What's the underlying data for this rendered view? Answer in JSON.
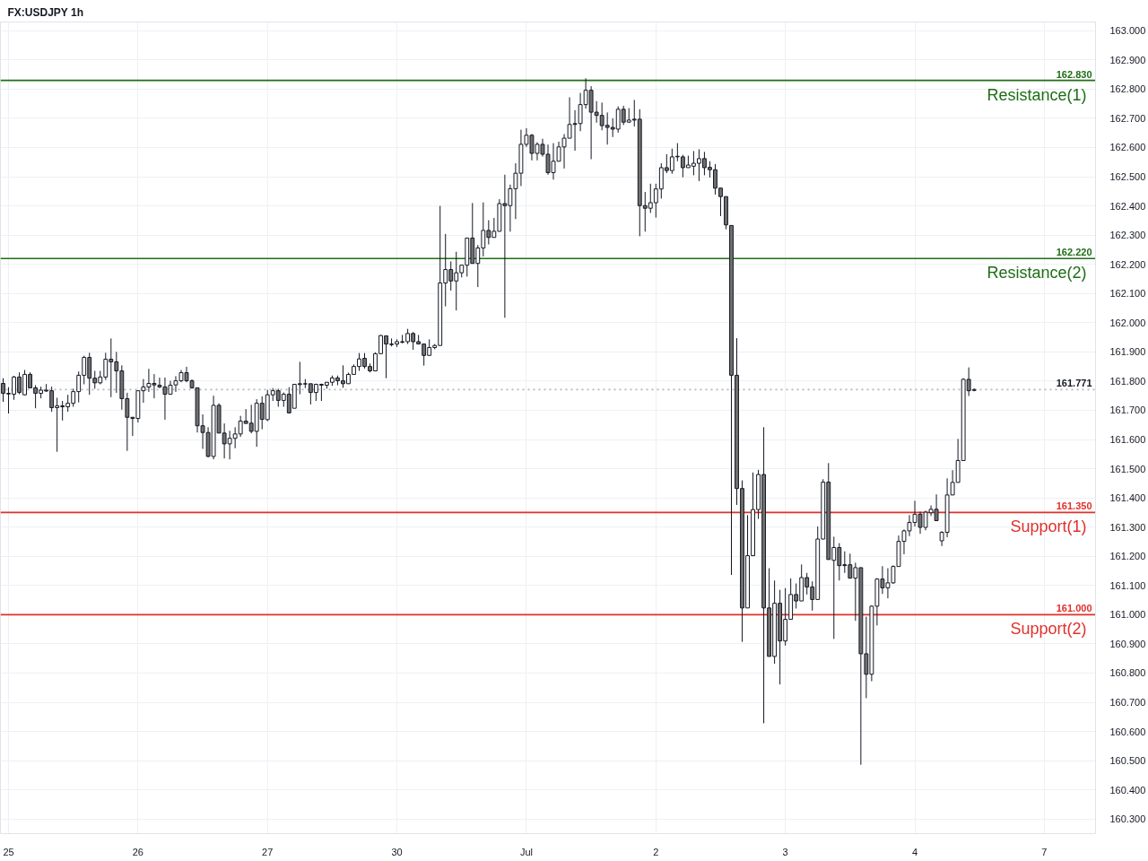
{
  "chart_data": {
    "type": "candlestick",
    "title": "FX:USDJPY 1h",
    "categories": [
      null,
      "25",
      null,
      null,
      null,
      null,
      null,
      null,
      null,
      null,
      null,
      null,
      null,
      null,
      null,
      null,
      null,
      null,
      null,
      null,
      null,
      null,
      null,
      null,
      null,
      "26",
      null,
      null,
      null,
      null,
      null,
      null,
      null,
      null,
      null,
      null,
      null,
      null,
      null,
      null,
      null,
      null,
      null,
      null,
      null,
      null,
      null,
      null,
      null,
      "27",
      null,
      null,
      null,
      null,
      null,
      null,
      null,
      null,
      null,
      null,
      null,
      null,
      null,
      null,
      null,
      null,
      null,
      null,
      null,
      null,
      null,
      null,
      null,
      "30",
      null,
      null,
      null,
      null,
      null,
      null,
      null,
      null,
      null,
      null,
      null,
      null,
      null,
      null,
      null,
      null,
      null,
      null,
      null,
      null,
      null,
      null,
      null,
      "Jul",
      null,
      null,
      null,
      null,
      null,
      null,
      null,
      null,
      null,
      null,
      null,
      null,
      null,
      null,
      null,
      null,
      null,
      null,
      null,
      null,
      null,
      null,
      null,
      "2",
      null,
      null,
      null,
      null,
      null,
      null,
      null,
      null,
      null,
      null,
      null,
      null,
      null,
      null,
      null,
      null,
      null,
      null,
      null,
      null,
      null,
      null,
      null,
      "3",
      null,
      null,
      null,
      null,
      null,
      null,
      null,
      null,
      null,
      null,
      null,
      null,
      null,
      null,
      null,
      null,
      null,
      null,
      null,
      null,
      null,
      null,
      null,
      "4",
      null,
      null,
      null,
      null,
      null,
      null,
      null,
      null,
      null,
      null,
      null,
      null,
      null,
      null,
      null,
      null,
      null,
      null,
      null,
      null,
      null,
      null,
      null,
      "7",
      null,
      null,
      null,
      null,
      null,
      null,
      null,
      null,
      null
    ],
    "ohlc": [
      [
        161.792,
        161.81,
        161.729,
        161.758
      ],
      [
        161.758,
        161.779,
        161.689,
        161.756
      ],
      [
        161.755,
        161.818,
        161.736,
        161.814
      ],
      [
        161.814,
        161.83,
        161.755,
        161.761
      ],
      [
        161.753,
        161.838,
        161.751,
        161.823
      ],
      [
        161.823,
        161.83,
        161.777,
        161.777
      ],
      [
        161.777,
        161.786,
        161.707,
        161.758
      ],
      [
        161.758,
        161.781,
        161.741,
        161.769
      ],
      [
        161.769,
        161.79,
        161.763,
        161.766
      ],
      [
        161.767,
        161.781,
        161.695,
        161.709
      ],
      [
        161.709,
        161.743,
        161.558,
        161.715
      ],
      [
        161.715,
        161.732,
        161.665,
        161.712
      ],
      [
        161.712,
        161.753,
        161.695,
        161.724
      ],
      [
        161.724,
        161.774,
        161.712,
        161.764
      ],
      [
        161.764,
        161.833,
        161.727,
        161.82
      ],
      [
        161.82,
        161.887,
        161.789,
        161.881
      ],
      [
        161.881,
        161.897,
        161.753,
        161.81
      ],
      [
        161.81,
        161.835,
        161.774,
        161.794
      ],
      [
        161.794,
        161.835,
        161.789,
        161.814
      ],
      [
        161.814,
        161.897,
        161.804,
        161.875
      ],
      [
        161.875,
        161.946,
        161.745,
        161.866
      ],
      [
        161.866,
        161.9,
        161.76,
        161.835
      ],
      [
        161.835,
        161.854,
        161.702,
        161.74
      ],
      [
        161.74,
        161.76,
        161.561,
        161.676
      ],
      [
        161.676,
        161.676,
        161.612,
        161.672
      ],
      [
        161.672,
        161.767,
        161.658,
        161.767
      ],
      [
        161.767,
        161.807,
        161.726,
        161.78
      ],
      [
        161.78,
        161.842,
        161.763,
        161.792
      ],
      [
        161.792,
        161.824,
        161.741,
        161.787
      ],
      [
        161.786,
        161.812,
        161.776,
        161.78
      ],
      [
        161.78,
        161.812,
        161.668,
        161.755
      ],
      [
        161.755,
        161.801,
        161.755,
        161.786
      ],
      [
        161.787,
        161.817,
        161.763,
        161.801
      ],
      [
        161.801,
        161.838,
        161.796,
        161.829
      ],
      [
        161.829,
        161.849,
        161.796,
        161.801
      ],
      [
        161.801,
        161.806,
        161.774,
        161.777
      ],
      [
        161.777,
        161.777,
        161.624,
        161.647
      ],
      [
        161.647,
        161.686,
        161.568,
        161.624
      ],
      [
        161.624,
        161.642,
        161.539,
        161.542
      ],
      [
        161.542,
        161.75,
        161.532,
        161.717
      ],
      [
        161.717,
        161.724,
        161.622,
        161.622
      ],
      [
        161.622,
        161.655,
        161.535,
        161.585
      ],
      [
        161.585,
        161.63,
        161.532,
        161.604
      ],
      [
        161.604,
        161.642,
        161.57,
        161.619
      ],
      [
        161.619,
        161.681,
        161.609,
        161.663
      ],
      [
        161.663,
        161.704,
        161.655,
        161.655
      ],
      [
        161.656,
        161.719,
        161.621,
        161.628
      ],
      [
        161.628,
        161.738,
        161.575,
        161.724
      ],
      [
        161.724,
        161.748,
        161.635,
        161.669
      ],
      [
        161.668,
        161.77,
        161.663,
        161.753
      ],
      [
        161.753,
        161.776,
        161.732,
        161.767
      ],
      [
        161.767,
        161.774,
        161.712,
        161.734
      ],
      [
        161.734,
        161.761,
        161.712,
        161.755
      ],
      [
        161.755,
        161.779,
        161.689,
        161.691
      ],
      [
        161.707,
        161.789,
        161.707,
        161.789
      ],
      [
        161.791,
        161.866,
        161.755,
        161.788
      ],
      [
        161.791,
        161.807,
        161.776,
        161.79
      ],
      [
        161.791,
        161.791,
        161.72,
        161.761
      ],
      [
        161.761,
        161.791,
        161.732,
        161.789
      ],
      [
        161.789,
        161.791,
        161.732,
        161.786
      ],
      [
        161.786,
        161.796,
        161.774,
        161.796
      ],
      [
        161.796,
        161.819,
        161.784,
        161.811
      ],
      [
        161.811,
        161.819,
        161.786,
        161.801
      ],
      [
        161.801,
        161.854,
        161.777,
        161.791
      ],
      [
        161.791,
        161.829,
        161.791,
        161.823
      ],
      [
        161.823,
        161.857,
        161.823,
        161.85
      ],
      [
        161.85,
        161.896,
        161.835,
        161.876
      ],
      [
        161.878,
        161.896,
        161.843,
        161.85
      ],
      [
        161.85,
        161.86,
        161.83,
        161.835
      ],
      [
        161.835,
        161.898,
        161.835,
        161.894
      ],
      [
        161.894,
        161.958,
        161.894,
        161.956
      ],
      [
        161.955,
        161.955,
        161.81,
        161.927
      ],
      [
        161.927,
        161.946,
        161.919,
        161.925
      ],
      [
        161.927,
        161.943,
        161.917,
        161.935
      ],
      [
        161.935,
        161.958,
        161.929,
        161.933
      ],
      [
        161.935,
        161.979,
        161.927,
        161.963
      ],
      [
        161.963,
        161.968,
        161.907,
        161.935
      ],
      [
        161.935,
        161.958,
        161.927,
        161.927
      ],
      [
        161.927,
        161.927,
        161.853,
        161.888
      ],
      [
        161.888,
        161.943,
        161.888,
        161.915
      ],
      [
        161.915,
        161.927,
        161.909,
        161.922
      ],
      [
        161.922,
        162.4,
        161.922,
        162.136
      ],
      [
        162.136,
        162.304,
        162.056,
        162.182
      ],
      [
        162.182,
        162.21,
        162.11,
        162.143
      ],
      [
        162.143,
        162.243,
        162.042,
        162.171
      ],
      [
        162.171,
        162.197,
        162.155,
        162.197
      ],
      [
        162.197,
        162.29,
        162.158,
        162.29
      ],
      [
        162.29,
        162.41,
        162.203,
        162.203
      ],
      [
        162.203,
        162.266,
        162.122,
        162.256
      ],
      [
        162.256,
        162.412,
        162.227,
        162.316
      ],
      [
        162.316,
        162.351,
        162.268,
        162.292
      ],
      [
        162.292,
        162.359,
        162.292,
        162.313
      ],
      [
        162.313,
        162.423,
        162.313,
        162.408
      ],
      [
        162.408,
        162.507,
        162.017,
        162.401
      ],
      [
        162.401,
        162.473,
        162.312,
        162.459
      ],
      [
        162.459,
        162.546,
        162.355,
        162.512
      ],
      [
        162.512,
        162.661,
        162.468,
        162.611
      ],
      [
        162.611,
        162.666,
        162.602,
        162.642
      ],
      [
        162.642,
        162.646,
        162.556,
        162.58
      ],
      [
        162.58,
        162.618,
        162.556,
        162.611
      ],
      [
        162.611,
        162.63,
        162.569,
        162.577
      ],
      [
        162.577,
        162.61,
        162.507,
        162.514
      ],
      [
        162.514,
        162.615,
        162.49,
        162.553
      ],
      [
        162.553,
        162.62,
        162.553,
        162.602
      ],
      [
        162.602,
        162.646,
        162.528,
        162.632
      ],
      [
        162.632,
        162.772,
        162.632,
        162.679
      ],
      [
        162.682,
        162.728,
        162.589,
        162.679
      ],
      [
        162.682,
        162.787,
        162.656,
        162.747
      ],
      [
        162.747,
        162.837,
        162.733,
        162.796
      ],
      [
        162.796,
        162.81,
        162.56,
        162.721
      ],
      [
        162.721,
        162.759,
        162.685,
        162.71
      ],
      [
        162.71,
        162.754,
        162.659,
        162.675
      ],
      [
        162.676,
        162.72,
        162.61,
        162.669
      ],
      [
        162.669,
        162.7,
        162.636,
        162.663
      ],
      [
        162.663,
        162.741,
        162.651,
        162.731
      ],
      [
        162.731,
        162.743,
        162.677,
        162.687
      ],
      [
        162.687,
        162.735,
        162.684,
        162.694
      ],
      [
        162.697,
        162.763,
        162.672,
        162.694
      ],
      [
        162.697,
        162.731,
        162.296,
        162.401
      ],
      [
        162.401,
        162.448,
        162.312,
        162.392
      ],
      [
        162.392,
        162.476,
        162.376,
        162.411
      ],
      [
        162.411,
        162.476,
        162.36,
        162.458
      ],
      [
        162.458,
        162.546,
        162.425,
        162.531
      ],
      [
        162.531,
        162.577,
        162.512,
        162.521
      ],
      [
        162.521,
        162.596,
        162.51,
        162.568
      ],
      [
        162.568,
        162.615,
        162.553,
        162.57
      ],
      [
        162.568,
        162.575,
        162.498,
        162.531
      ],
      [
        162.531,
        162.572,
        162.531,
        162.54
      ],
      [
        162.536,
        162.588,
        162.505,
        162.546
      ],
      [
        162.546,
        162.594,
        162.485,
        162.562
      ],
      [
        162.562,
        162.585,
        162.505,
        162.531
      ],
      [
        162.532,
        162.553,
        162.497,
        162.524
      ],
      [
        162.524,
        162.543,
        162.439,
        162.461
      ],
      [
        162.461,
        162.461,
        162.365,
        162.432
      ],
      [
        162.432,
        162.432,
        162.32,
        162.335
      ],
      [
        162.333,
        162.333,
        161.136,
        161.82
      ],
      [
        161.82,
        161.947,
        161.376,
        161.432
      ],
      [
        161.432,
        161.46,
        160.907,
        161.023
      ],
      [
        161.023,
        161.341,
        161.023,
        161.202
      ],
      [
        161.202,
        161.487,
        161.202,
        161.36
      ],
      [
        161.36,
        161.496,
        161.328,
        161.48
      ],
      [
        161.48,
        161.642,
        160.628,
        161.023
      ],
      [
        161.023,
        161.159,
        160.857,
        160.857
      ],
      [
        160.857,
        161.117,
        160.832,
        161.039
      ],
      [
        161.039,
        161.085,
        160.761,
        160.91
      ],
      [
        160.91,
        161.091,
        160.894,
        160.984
      ],
      [
        160.984,
        161.124,
        160.984,
        161.069
      ],
      [
        161.069,
        161.107,
        161.021,
        161.047
      ],
      [
        161.047,
        161.172,
        161.047,
        161.127
      ],
      [
        161.127,
        161.143,
        161.069,
        161.095
      ],
      [
        161.095,
        161.114,
        161.014,
        161.052
      ],
      [
        161.052,
        161.302,
        161.052,
        161.259
      ],
      [
        161.259,
        161.464,
        161.258,
        161.454
      ],
      [
        161.454,
        161.519,
        161.189,
        161.189
      ],
      [
        161.186,
        161.267,
        160.917,
        161.23
      ],
      [
        161.23,
        161.245,
        161.117,
        161.168
      ],
      [
        161.171,
        161.217,
        161.143,
        161.168
      ],
      [
        161.171,
        161.209,
        161.125,
        161.125
      ],
      [
        161.125,
        161.178,
        160.979,
        161.161
      ],
      [
        161.161,
        161.161,
        160.486,
        160.866
      ],
      [
        160.866,
        160.993,
        160.714,
        160.796
      ],
      [
        160.796,
        161.032,
        160.772,
        161.029
      ],
      [
        161.029,
        161.125,
        160.963,
        161.122
      ],
      [
        161.122,
        161.166,
        161.071,
        161.092
      ],
      [
        161.092,
        161.159,
        161.056,
        161.109
      ],
      [
        161.109,
        161.169,
        161.106,
        161.165
      ],
      [
        161.165,
        161.271,
        161.165,
        161.251
      ],
      [
        161.251,
        161.292,
        161.207,
        161.287
      ],
      [
        161.287,
        161.341,
        161.269,
        161.316
      ],
      [
        161.316,
        161.39,
        161.302,
        161.344
      ],
      [
        161.344,
        161.353,
        161.277,
        161.299
      ],
      [
        161.299,
        161.356,
        161.289,
        161.351
      ],
      [
        161.349,
        161.374,
        161.338,
        161.361
      ],
      [
        161.361,
        161.412,
        161.322,
        161.322
      ],
      [
        161.253,
        161.286,
        161.235,
        161.282
      ],
      [
        161.282,
        161.467,
        161.265,
        161.41
      ],
      [
        161.41,
        161.495,
        161.41,
        161.453
      ],
      [
        161.453,
        161.602,
        161.453,
        161.528
      ],
      [
        161.528,
        161.81,
        161.528,
        161.806
      ],
      [
        161.806,
        161.847,
        161.749,
        161.767
      ],
      [
        161.768,
        161.775,
        161.765,
        161.771
      ],
      null,
      null,
      null,
      null,
      null,
      null,
      null,
      null,
      null,
      null,
      null,
      null,
      null,
      null,
      null,
      null,
      null,
      null,
      null,
      null,
      null,
      null
    ],
    "ylim": [
      160.25,
      163.03
    ],
    "yticks": [
      {
        "value": 160.3,
        "label": "160.300"
      },
      {
        "value": 160.4,
        "label": "160.400"
      },
      {
        "value": 160.5,
        "label": "160.500"
      },
      {
        "value": 160.6,
        "label": "160.600"
      },
      {
        "value": 160.7,
        "label": "160.700"
      },
      {
        "value": 160.8,
        "label": "160.800"
      },
      {
        "value": 160.9,
        "label": "160.900"
      },
      {
        "value": 161.0,
        "label": "161.000"
      },
      {
        "value": 161.1,
        "label": "161.100"
      },
      {
        "value": 161.2,
        "label": "161.200"
      },
      {
        "value": 161.3,
        "label": "161.300"
      },
      {
        "value": 161.4,
        "label": "161.400"
      },
      {
        "value": 161.5,
        "label": "161.500"
      },
      {
        "value": 161.6,
        "label": "161.600"
      },
      {
        "value": 161.7,
        "label": "161.700"
      },
      {
        "value": 161.8,
        "label": "161.800"
      },
      {
        "value": 161.9,
        "label": "161.900"
      },
      {
        "value": 162.0,
        "label": "162.000"
      },
      {
        "value": 162.1,
        "label": "162.100"
      },
      {
        "value": 162.2,
        "label": "162.200"
      },
      {
        "value": 162.3,
        "label": "162.300"
      },
      {
        "value": 162.4,
        "label": "162.400"
      },
      {
        "value": 162.5,
        "label": "162.500"
      },
      {
        "value": 162.6,
        "label": "162.600"
      },
      {
        "value": 162.7,
        "label": "162.700"
      },
      {
        "value": 162.8,
        "label": "162.800"
      },
      {
        "value": 162.9,
        "label": "162.900"
      },
      {
        "value": 163.0,
        "label": "163.000"
      }
    ],
    "grid": true,
    "ref_lines": [
      {
        "axis": "y",
        "value": 162.83,
        "label": "Resistance(1)",
        "color": "#1e6d16"
      },
      {
        "axis": "y",
        "value": 162.22,
        "label": "Resistance(2)",
        "color": "#1e6d16"
      },
      {
        "axis": "y",
        "value": 161.35,
        "label": "Support(1)",
        "color": "#e0302a"
      },
      {
        "axis": "y",
        "value": 161.0,
        "label": "Support(2)",
        "color": "#e0302a"
      },
      {
        "axis": "y",
        "value": 161.771,
        "color": "#b2b5be",
        "line_style": "dotted"
      }
    ],
    "annotations": [
      {
        "text": "162.830",
        "y": 162.83
      },
      {
        "text": "162.220",
        "y": 162.22
      },
      {
        "text": "161.350",
        "y": 161.35
      },
      {
        "text": "161.000",
        "y": 161.0
      },
      {
        "text": "161.771",
        "y": 161.771
      }
    ]
  }
}
